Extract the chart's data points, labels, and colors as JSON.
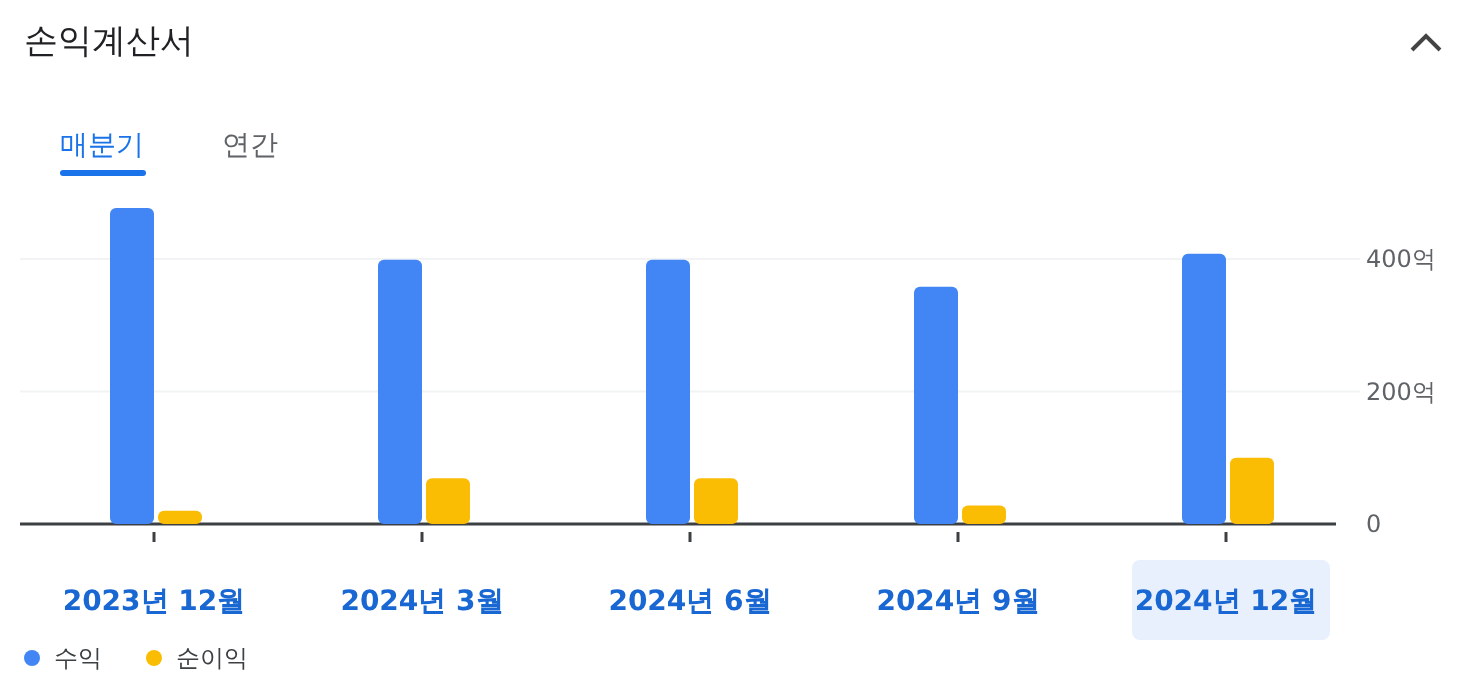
{
  "chart_data": {
    "type": "bar",
    "title": "손익계산서",
    "annotations": [
      "매분기",
      "연간"
    ],
    "categories": [
      "2023년 12월",
      "2024년 3월",
      "2024년 6월",
      "2024년 9월",
      "2024년 12월"
    ],
    "series": [
      {
        "name": "수익",
        "color": "#4285f4",
        "values": [
          477,
          399,
          399,
          358,
          408
        ]
      },
      {
        "name": "순이익",
        "color": "#fbbc04",
        "values": [
          20,
          69,
          69,
          28,
          100
        ]
      }
    ],
    "ylim": [
      0,
      477
    ],
    "yticks": [
      0,
      {
        "value": 200,
        "label": "200억"
      },
      {
        "value": 400,
        "label": "400억"
      }
    ],
    "grid": "y",
    "legend": "bottom left"
  }
}
